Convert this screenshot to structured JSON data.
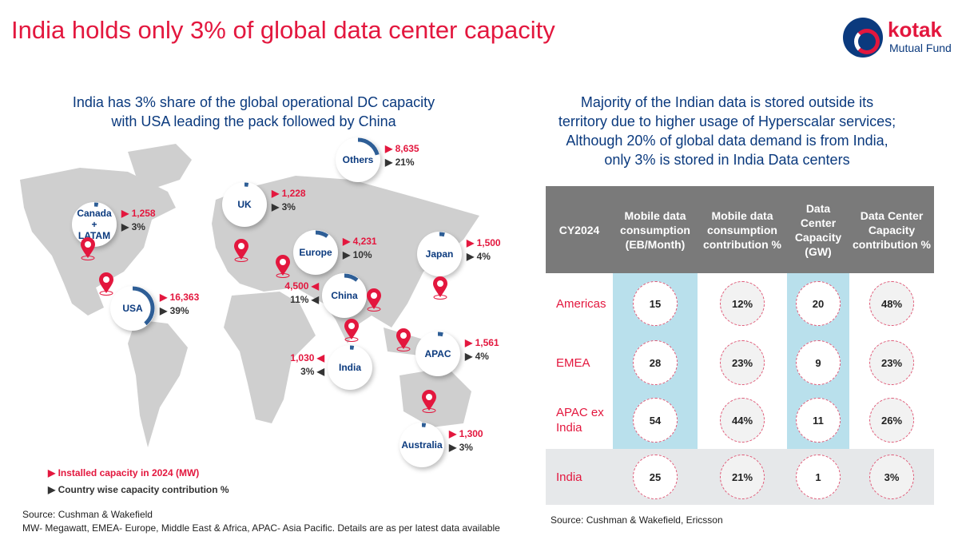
{
  "title": "India holds only 3% of global data center capacity",
  "logo": {
    "name": "kotak",
    "sub": "Mutual Fund"
  },
  "left_subtitle": [
    "India has 3% share of the global operational DC capacity",
    "with USA leading the pack followed by China"
  ],
  "right_subtitle": [
    "Majority of the Indian data is stored outside its",
    "territory due to higher usage of Hyperscalar services;",
    "Although 20% of global data demand is from India,",
    "only 3% is stored in India Data centers"
  ],
  "regions": [
    {
      "name": "Others",
      "mw": "8,635",
      "pct": "21%",
      "share": 21
    },
    {
      "name": "UK",
      "mw": "1,228",
      "pct": "3%",
      "share": 3
    },
    {
      "name": "Canada + LATAM",
      "mw": "1,258",
      "pct": "3%",
      "share": 3
    },
    {
      "name": "Europe",
      "mw": "4,231",
      "pct": "10%",
      "share": 10
    },
    {
      "name": "Japan",
      "mw": "1,500",
      "pct": "4%",
      "share": 4
    },
    {
      "name": "China",
      "mw": "4,500",
      "pct": "11%",
      "share": 11
    },
    {
      "name": "USA",
      "mw": "16,363",
      "pct": "39%",
      "share": 39
    },
    {
      "name": "India",
      "mw": "1,030",
      "pct": "3%",
      "share": 3
    },
    {
      "name": "APAC",
      "mw": "1,561",
      "pct": "4%",
      "share": 4
    },
    {
      "name": "Australia",
      "mw": "1,300",
      "pct": "3%",
      "share": 3
    }
  ],
  "legend": {
    "installed": "Installed capacity in 2024 (MW)",
    "contribution": "Country wise capacity contribution %"
  },
  "source_left": "Source: Cushman & Wakefield",
  "note_left": "MW- Megawatt, EMEA- Europe, Middle East & Africa, APAC- Asia Pacific. Details are as per latest data available",
  "table": {
    "headers": [
      "CY2024",
      "Mobile data consumption (EB/Month)",
      "Mobile data consumption contribution %",
      "Data Center Capacity (GW)",
      "Data Center Capacity contribution %"
    ],
    "rows": [
      {
        "label": "Americas",
        "values": [
          "15",
          "12%",
          "20",
          "48%"
        ]
      },
      {
        "label": "EMEA",
        "values": [
          "28",
          "23%",
          "9",
          "23%"
        ]
      },
      {
        "label": "APAC ex India",
        "values": [
          "54",
          "44%",
          "11",
          "26%"
        ]
      },
      {
        "label": "India",
        "values": [
          "25",
          "21%",
          "1",
          "3%"
        ]
      }
    ]
  },
  "source_right": "Source: Cushman & Wakefield, Ericsson"
}
